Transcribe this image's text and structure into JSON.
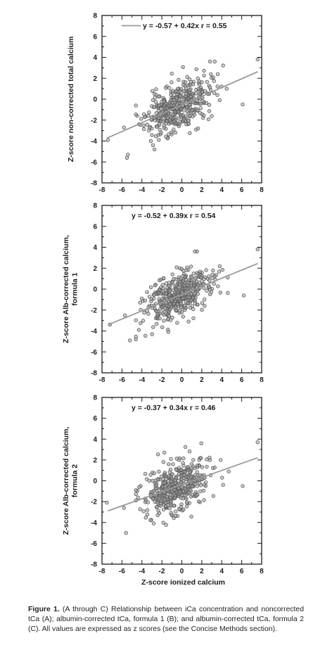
{
  "chart_data": [
    {
      "type": "scatter",
      "panel": "A",
      "ylabel": "Z-score non-corrected total calcium",
      "xlabel": "",
      "xlim": [
        -8,
        8
      ],
      "ylim": [
        -8,
        8
      ],
      "xticks": [
        "-8",
        "-6",
        "-4",
        "-2",
        "0",
        "2",
        "4",
        "6",
        "8"
      ],
      "yticks": [
        "8",
        "6",
        "4",
        "2",
        "0",
        "-2",
        "-4",
        "-6",
        "-8"
      ],
      "regression": {
        "intercept": -0.57,
        "slope": 0.42,
        "x_range": [
          -7.5,
          7.6
        ]
      },
      "legend_text": "y = -0.57 + 0.42x   r = 0.55",
      "legend_has_line": true,
      "marker_color": "#555555",
      "line_color": "#9a9a9a",
      "outliers": [
        [
          -7.4,
          -3.9
        ],
        [
          -5.4,
          -5.3
        ],
        [
          -5.5,
          -5.6
        ],
        [
          -5.8,
          -2.7
        ],
        [
          7.6,
          3.8
        ],
        [
          6.1,
          -0.5
        ],
        [
          4.5,
          1.0
        ],
        [
          3.6,
          2.4
        ]
      ],
      "cloud": {
        "count": 420,
        "x_mean": -0.5,
        "x_sd": 1.6,
        "y_sd": 1.15,
        "seed": 11
      }
    },
    {
      "type": "scatter",
      "panel": "B",
      "ylabel": "Z-score Alb-corrected calcium, formula 1",
      "xlabel": "",
      "xlim": [
        -8,
        8
      ],
      "ylim": [
        -8,
        8
      ],
      "xticks": [
        "-8",
        "-6",
        "-4",
        "-2",
        "0",
        "2",
        "4",
        "6",
        "8"
      ],
      "yticks": [
        "8",
        "6",
        "4",
        "2",
        "0",
        "-2",
        "-4",
        "-6",
        "-8"
      ],
      "regression": {
        "intercept": -0.52,
        "slope": 0.39,
        "x_range": [
          -7.4,
          7.6
        ]
      },
      "legend_text": "y = -0.52 + 0.39x   r = 0.54",
      "legend_has_line": false,
      "marker_color": "#555555",
      "line_color": "#9a9a9a",
      "outliers": [
        [
          -7.2,
          -3.4
        ],
        [
          -5.2,
          -4.9
        ],
        [
          -5.7,
          -2.5
        ],
        [
          7.6,
          3.8
        ],
        [
          6.2,
          -0.6
        ],
        [
          4.6,
          1.1
        ],
        [
          3.8,
          2.2
        ]
      ],
      "cloud": {
        "count": 420,
        "x_mean": -0.5,
        "x_sd": 1.6,
        "y_sd": 1.1,
        "seed": 23
      }
    },
    {
      "type": "scatter",
      "panel": "C",
      "ylabel": "Z-score Alb-corrected calcium, formula 2",
      "xlabel": "Z-score ionized calcium",
      "xlim": [
        -8,
        8
      ],
      "ylim": [
        -8,
        8
      ],
      "xticks": [
        "-8",
        "-6",
        "-4",
        "-2",
        "0",
        "2",
        "4",
        "6",
        "8"
      ],
      "yticks": [
        "8",
        "6",
        "4",
        "2",
        "0",
        "-2",
        "-4",
        "-6",
        "-8"
      ],
      "regression": {
        "intercept": -0.37,
        "slope": 0.34,
        "x_range": [
          -7.4,
          7.6
        ]
      },
      "legend_text": "y = -0.37 + 0.34x   r = 0.46",
      "legend_has_line": false,
      "marker_color": "#555555",
      "line_color": "#9a9a9a",
      "outliers": [
        [
          -7.5,
          -2.1
        ],
        [
          -5.6,
          -5.0
        ],
        [
          -5.8,
          -2.6
        ],
        [
          7.6,
          3.7
        ],
        [
          6.1,
          -0.5
        ],
        [
          4.7,
          0.9
        ],
        [
          3.9,
          2.0
        ]
      ],
      "cloud": {
        "count": 420,
        "x_mean": -0.5,
        "x_sd": 1.6,
        "y_sd": 1.2,
        "seed": 37
      }
    }
  ],
  "caption": {
    "label": "Figure 1.",
    "text": "(A through C) Relationship between iCa concentration and noncorrected tCa (A); albumin-corrected tCa, formula 1 (B); and albumin-corrected tCa, formula 2 (C). All values are expressed as z scores (see the Concise Methods section)."
  }
}
